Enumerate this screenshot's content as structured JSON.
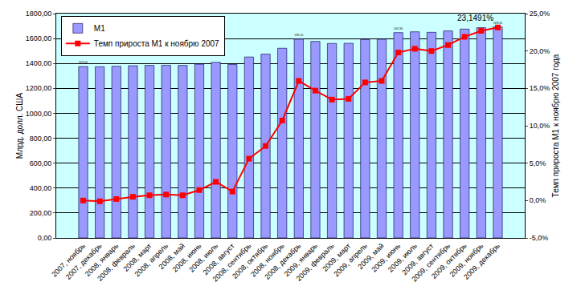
{
  "chart_data": {
    "type": "bar",
    "categories": [
      "2007, ноябрь",
      "2007, декабрь",
      "2008, январь",
      "2008, февраль",
      "2008, март",
      "2008, апрель",
      "2008, май",
      "2008, июнь",
      "2008, июль",
      "2008, август",
      "2008, сентябрь",
      "2008, октябрь",
      "2008, ноябрь",
      "2008, декабрь",
      "2009, январь",
      "2009, февраль",
      "2009, март",
      "2009, апрель",
      "2009, май",
      "2009, июнь",
      "2009, июль",
      "2009, август",
      "2009, сентябрь",
      "2009, октябрь",
      "2009, ноябрь",
      "2009, декабрь"
    ],
    "series": [
      {
        "name": "M1",
        "type": "bar",
        "color": "#9999ff",
        "values": [
          1375.0,
          1373.6,
          1377.8,
          1381.9,
          1384.6,
          1386.0,
          1384.6,
          1394.3,
          1409.4,
          1391.5,
          1452.0,
          1475.4,
          1522.1,
          1595.2,
          1577.1,
          1560.6,
          1562.0,
          1592.3,
          1595.0,
          1647.8,
          1654.1,
          1650.0,
          1661.0,
          1676.1,
          1687.1,
          1693.3
        ],
        "value_labels": [
          "1375,00",
          null,
          null,
          null,
          null,
          null,
          null,
          null,
          null,
          null,
          null,
          null,
          null,
          "1595,20",
          null,
          null,
          null,
          null,
          null,
          "1647,80",
          null,
          null,
          null,
          null,
          null,
          "1693,30"
        ]
      },
      {
        "name": "Темп прироста M1 к ноябрю 2007",
        "type": "line",
        "color": "#ff0000",
        "marker": "square",
        "axis": "y2",
        "values": [
          0.0,
          -0.1,
          0.2,
          0.5,
          0.7,
          0.8,
          0.7,
          1.4,
          2.5,
          1.2,
          5.6,
          7.3,
          10.7,
          16.0,
          14.7,
          13.5,
          13.6,
          15.8,
          16.0,
          19.8,
          20.3,
          20.0,
          20.8,
          21.9,
          22.7,
          23.1491
        ],
        "value_labels": [
          null,
          null,
          null,
          null,
          null,
          null,
          null,
          null,
          null,
          null,
          null,
          null,
          null,
          null,
          null,
          null,
          null,
          null,
          null,
          null,
          null,
          null,
          null,
          null,
          null,
          "23,1491%"
        ]
      }
    ],
    "y_label": "Млрд. долл. США",
    "y2_label": "Темп прироста M1 к ноябрю 2007 года",
    "ylim": [
      0,
      1800
    ],
    "yticks": [
      {
        "value": 0,
        "label": "0,00"
      },
      {
        "value": 200,
        "label": "200,00"
      },
      {
        "value": 400,
        "label": "400,00"
      },
      {
        "value": 600,
        "label": "600,00"
      },
      {
        "value": 800,
        "label": "800,00"
      },
      {
        "value": 1000,
        "label": "1000,00"
      },
      {
        "value": 1200,
        "label": "1200,00"
      },
      {
        "value": 1400,
        "label": "1400,00"
      },
      {
        "value": 1600,
        "label": "1600,00"
      },
      {
        "value": 1800,
        "label": "1800,00"
      }
    ],
    "y2lim": [
      -5,
      25
    ],
    "y2ticks": [
      {
        "value": -5,
        "label": "-5,0%"
      },
      {
        "value": 0,
        "label": "0,0%"
      },
      {
        "value": 5,
        "label": "5,0%"
      },
      {
        "value": 10,
        "label": "10,0%"
      },
      {
        "value": 15,
        "label": "15,0%"
      },
      {
        "value": 20,
        "label": "20,0%"
      },
      {
        "value": 25,
        "label": "25,0%"
      }
    ],
    "grid": true,
    "legend": "upper left"
  }
}
